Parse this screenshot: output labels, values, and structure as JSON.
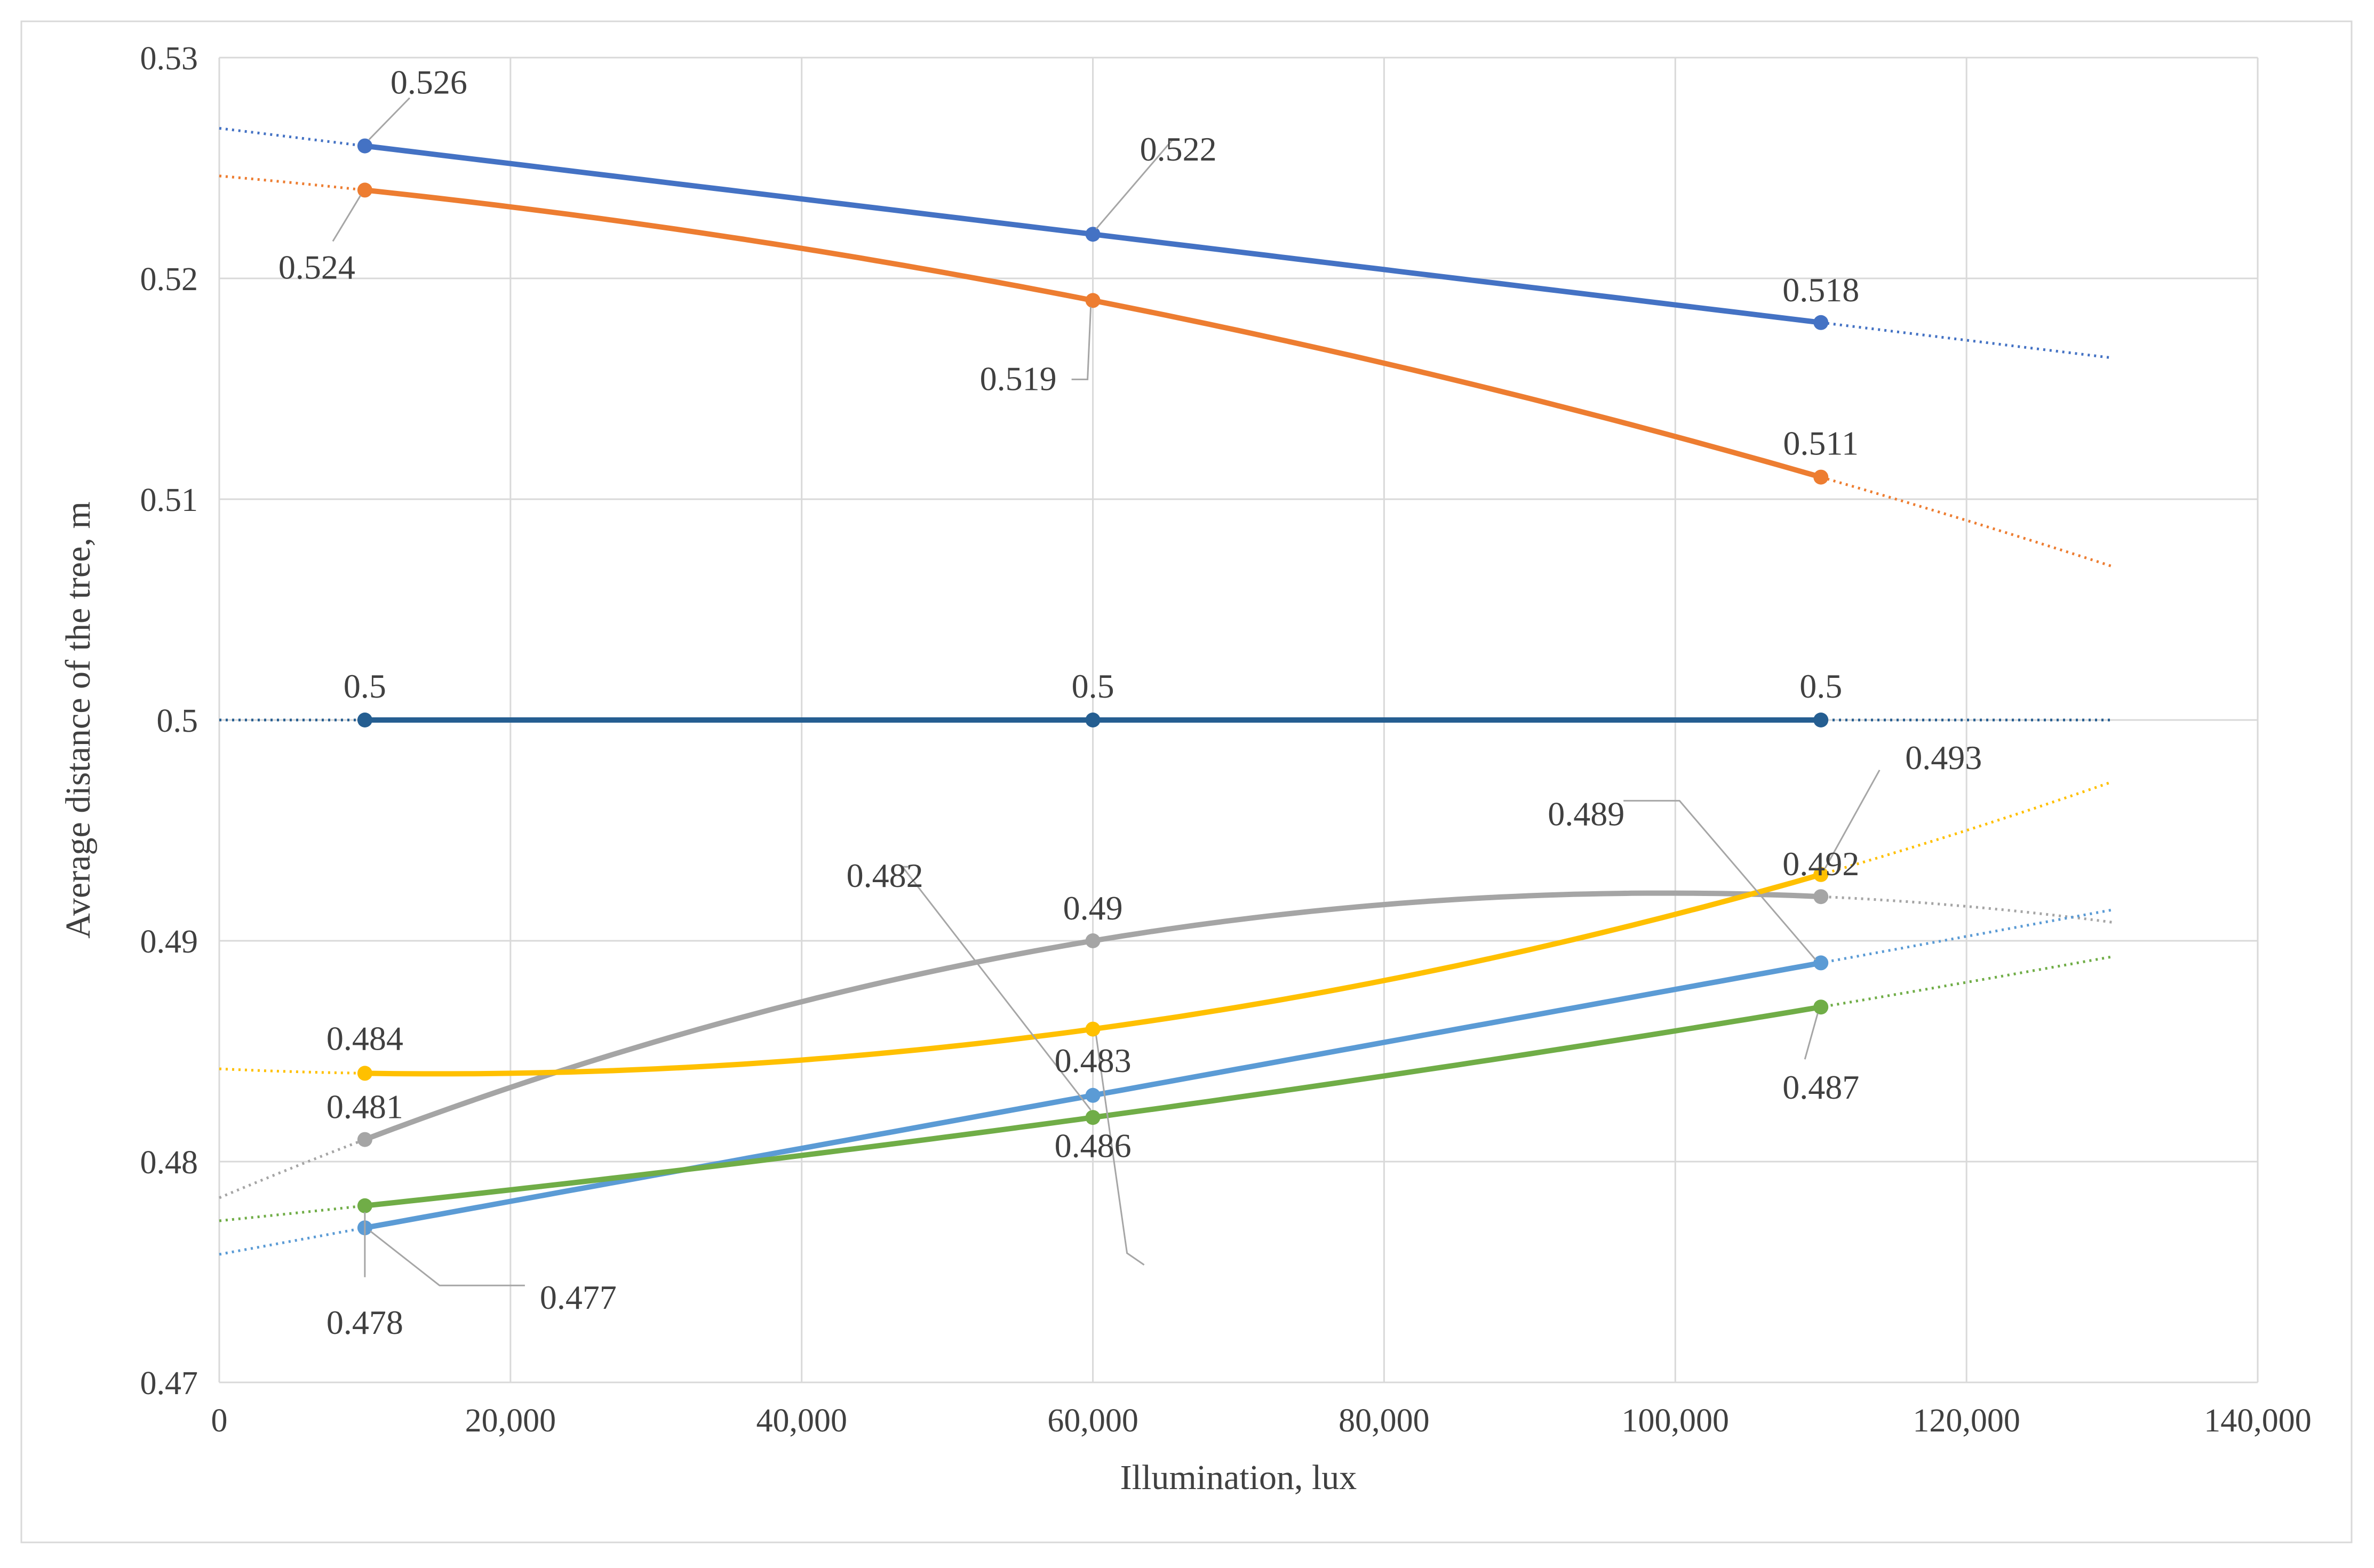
{
  "chart_data": {
    "type": "line",
    "title": "",
    "xlabel": "Illumination,  lux",
    "ylabel": "Average  distance of the tree, m",
    "xlim": [
      0,
      140000
    ],
    "ylim": [
      0.47,
      0.53
    ],
    "x_ticks": [
      0,
      20000,
      40000,
      60000,
      80000,
      100000,
      120000,
      140000
    ],
    "x_tick_labels": [
      "0",
      "20,000",
      "40,000",
      "60,000",
      "80,000",
      "100,000",
      "120,000",
      "140,000"
    ],
    "y_ticks": [
      0.47,
      0.48,
      0.49,
      0.5,
      0.51,
      0.52,
      0.53
    ],
    "y_tick_labels": [
      "0.47",
      "0.48",
      "0.49",
      "0.5",
      "0.51",
      "0.52",
      "0.53"
    ],
    "grid": true,
    "legend": "none",
    "x": [
      10000,
      60000,
      110000
    ],
    "series": [
      {
        "name": "series-blue",
        "color": "#4472C4",
        "values": [
          0.526,
          0.522,
          0.518
        ],
        "labels": [
          "0.526",
          "0.522",
          "0.518"
        ],
        "trend": "linear"
      },
      {
        "name": "series-orange",
        "color": "#ED7D31",
        "values": [
          0.524,
          0.519,
          0.511
        ],
        "labels": [
          "0.524",
          "0.519",
          "0.511"
        ],
        "trend": "poly2"
      },
      {
        "name": "series-darkblue",
        "color": "#255E91",
        "values": [
          0.5,
          0.5,
          0.5
        ],
        "labels": [
          "0.5",
          "0.5",
          "0.5"
        ],
        "trend": "linear"
      },
      {
        "name": "series-gray",
        "color": "#A5A5A5",
        "values": [
          0.481,
          0.49,
          0.492
        ],
        "labels": [
          "0.481",
          "0.49",
          "0.492"
        ],
        "trend": "poly2"
      },
      {
        "name": "series-yellow",
        "color": "#FFC000",
        "values": [
          0.484,
          0.486,
          0.493
        ],
        "labels": [
          "0.484",
          "0.486",
          "0.493"
        ],
        "trend": "poly2"
      },
      {
        "name": "series-lightblue",
        "color": "#5B9BD5",
        "values": [
          0.477,
          0.483,
          0.489
        ],
        "labels": [
          "0.477",
          "0.483",
          "0.489"
        ],
        "trend": "linear"
      },
      {
        "name": "series-green",
        "color": "#70AD47",
        "values": [
          0.478,
          0.482,
          0.487
        ],
        "labels": [
          "0.478",
          "0.482",
          "0.487"
        ],
        "trend": "poly2"
      }
    ]
  }
}
